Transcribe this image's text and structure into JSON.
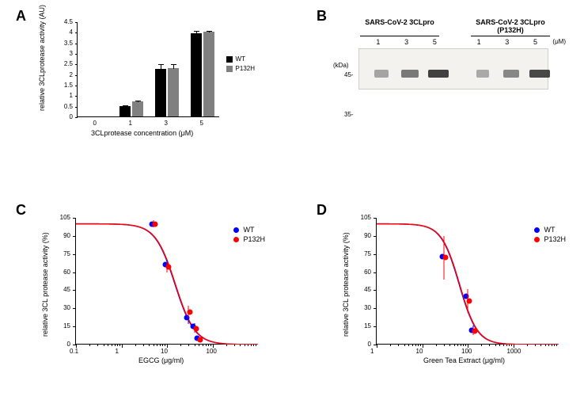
{
  "panel_a": {
    "label": "A",
    "y_axis_label": "relative 3CLprotease activity (AU)",
    "x_axis_label": "3CLprotease concentration (μM)",
    "y_ticks": [
      0,
      0.5,
      1.0,
      1.5,
      2.0,
      2.5,
      3.0,
      3.5,
      4.0,
      4.5
    ],
    "x_categories": [
      "0",
      "1",
      "3",
      "5"
    ],
    "series": [
      {
        "name": "WT",
        "color": "#000000",
        "values": [
          0,
          0.5,
          2.25,
          3.95
        ],
        "errors": [
          0,
          0.08,
          0.25,
          0.15
        ]
      },
      {
        "name": "P132H",
        "color": "#808080",
        "values": [
          0,
          0.7,
          2.3,
          4.0
        ],
        "errors": [
          0,
          0.1,
          0.2,
          0.1
        ]
      }
    ],
    "ylim": [
      0,
      4.5
    ],
    "title_fontsize": 9,
    "legend": [
      {
        "label": "WT",
        "color": "#000000"
      },
      {
        "label": "P132H",
        "color": "#808080"
      }
    ]
  },
  "panel_b": {
    "label": "B",
    "header_left": "SARS-CoV-2 3CLpro",
    "header_right": "SARS-CoV-2 3CLpro (P132H)",
    "lanes": [
      "1",
      "3",
      "5",
      "1",
      "3",
      "5"
    ],
    "unit": "(μM)",
    "mw_unit": "(kDa)",
    "mw_markers": [
      "45-",
      "35-"
    ],
    "bands": [
      {
        "lane": 0,
        "intensity": 0.2,
        "width": 18
      },
      {
        "lane": 1,
        "intensity": 0.5,
        "width": 22
      },
      {
        "lane": 2,
        "intensity": 0.9,
        "width": 26
      },
      {
        "lane": 3,
        "intensity": 0.15,
        "width": 16
      },
      {
        "lane": 4,
        "intensity": 0.4,
        "width": 20
      },
      {
        "lane": 5,
        "intensity": 0.85,
        "width": 26
      }
    ]
  },
  "panel_c": {
    "label": "C",
    "y_axis_label": "relative 3CL protease activity (%)",
    "x_axis_label": "EGCG (μg/ml)",
    "y_ticks": [
      0,
      15,
      30,
      45,
      60,
      75,
      90,
      105
    ],
    "x_ticks": [
      0.1,
      1,
      10,
      100
    ],
    "xlim": [
      0.1,
      1000
    ],
    "ylim": [
      0,
      105
    ],
    "x_log": true,
    "series": [
      {
        "name": "WT",
        "color": "#0000ff",
        "points": [
          {
            "x": 5,
            "y": 100,
            "err": 3
          },
          {
            "x": 10,
            "y": 66,
            "err": 4
          },
          {
            "x": 30,
            "y": 22,
            "err": 5
          },
          {
            "x": 40,
            "y": 15,
            "err": 3
          },
          {
            "x": 50,
            "y": 5,
            "err": 2
          }
        ]
      },
      {
        "name": "P132H",
        "color": "#ff0000",
        "points": [
          {
            "x": 5,
            "y": 100,
            "err": 3
          },
          {
            "x": 10,
            "y": 64,
            "err": 4
          },
          {
            "x": 30,
            "y": 27,
            "err": 5
          },
          {
            "x": 40,
            "y": 13,
            "err": 3
          },
          {
            "x": 50,
            "y": 4,
            "err": 2
          }
        ]
      }
    ],
    "curve_color_wt": "#0000ff",
    "curve_color_p132h": "#ff0000",
    "legend": [
      {
        "label": "WT",
        "color": "#0000ff"
      },
      {
        "label": "P132H",
        "color": "#ff0000"
      }
    ]
  },
  "panel_d": {
    "label": "D",
    "y_axis_label": "relative 3CL protease activity (%)",
    "x_axis_label": "Green Tea Extract (μg/ml)",
    "y_ticks": [
      0,
      15,
      30,
      45,
      60,
      75,
      90,
      105
    ],
    "x_ticks": [
      1,
      10,
      100,
      1000
    ],
    "xlim": [
      1,
      10000
    ],
    "ylim": [
      0,
      105
    ],
    "x_log": true,
    "series": [
      {
        "name": "WT",
        "color": "#0000ff",
        "points": [
          {
            "x": 30,
            "y": 73,
            "err": 10
          },
          {
            "x": 100,
            "y": 40,
            "err": 4
          },
          {
            "x": 130,
            "y": 12,
            "err": 4
          }
        ]
      },
      {
        "name": "P132H",
        "color": "#ff0000",
        "points": [
          {
            "x": 30,
            "y": 72,
            "err": 18
          },
          {
            "x": 100,
            "y": 36,
            "err": 10
          },
          {
            "x": 130,
            "y": 11,
            "err": 3
          }
        ]
      }
    ],
    "curve_color_wt": "#0000ff",
    "curve_color_p132h": "#ff0000",
    "legend": [
      {
        "label": "WT",
        "color": "#0000ff"
      },
      {
        "label": "P132H",
        "color": "#ff0000"
      }
    ]
  }
}
